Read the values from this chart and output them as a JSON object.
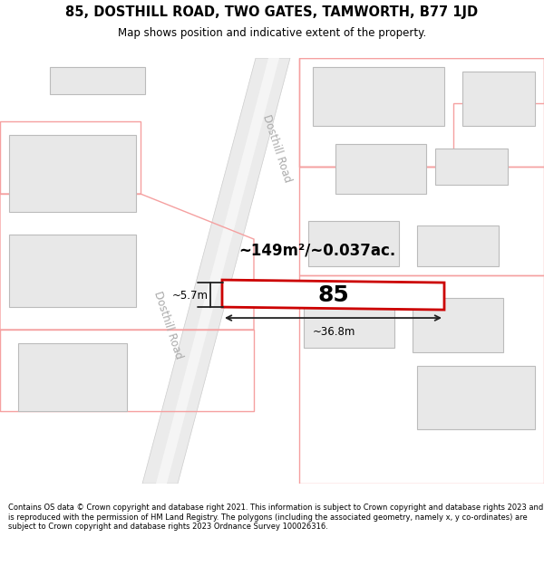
{
  "title_line1": "85, DOSTHILL ROAD, TWO GATES, TAMWORTH, B77 1JD",
  "title_line2": "Map shows position and indicative extent of the property.",
  "footer_text": "Contains OS data © Crown copyright and database right 2021. This information is subject to Crown copyright and database rights 2023 and is reproduced with the permission of HM Land Registry. The polygons (including the associated geometry, namely x, y co-ordinates) are subject to Crown copyright and database rights 2023 Ordnance Survey 100026316.",
  "bg_color": "#ffffff",
  "map_bg": "#ffffff",
  "plot_ec": "#f5a0a0",
  "bld_fc": "#e8e8e8",
  "bld_ec": "#bbbbbb",
  "highlight_ec": "#cc0000",
  "road_fc": "#e8e8e8",
  "road_ec": "#cccccc",
  "dim_color": "#222222",
  "road_label_color": "#aaaaaa",
  "measurement_text": "~149m²/~0.037ac.",
  "dim_width": "~36.8m",
  "dim_height": "~5.7m",
  "label_85": "85",
  "road_label": "Dosthill Road"
}
